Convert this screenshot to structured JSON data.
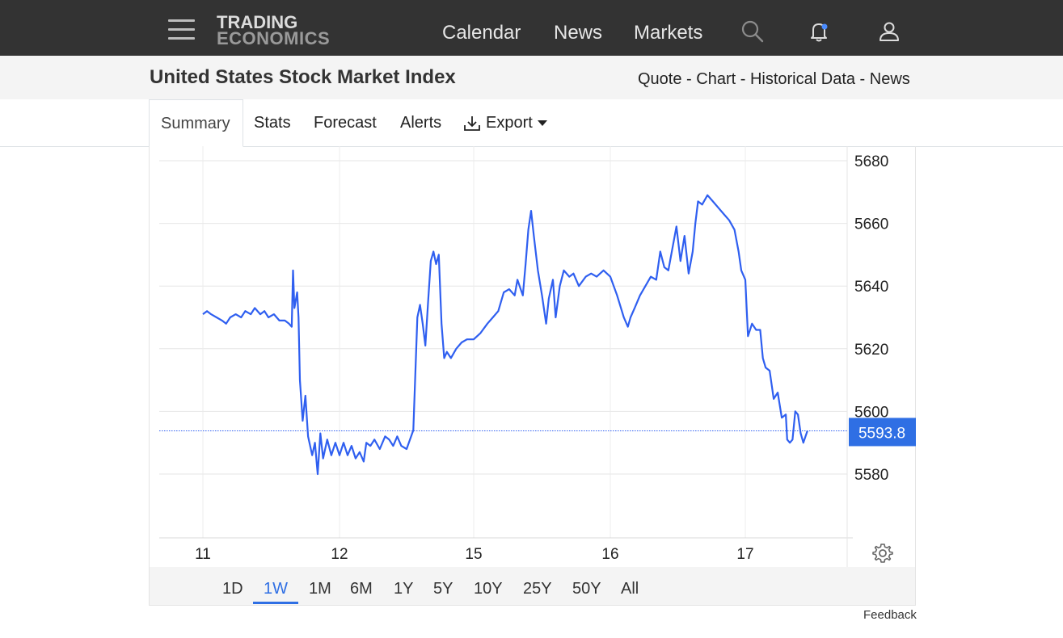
{
  "nav": {
    "logo_top": "TRADING",
    "logo_bottom": "ECONOMICS",
    "links": [
      "Calendar",
      "News",
      "Markets"
    ],
    "icons": [
      "menu-icon",
      "search-icon",
      "bell-icon",
      "user-icon"
    ],
    "notification_dot_color": "#4a8cff"
  },
  "header": {
    "title": "United States Stock Market Index",
    "links": [
      "Quote",
      "Chart",
      "Historical Data",
      "News"
    ],
    "separator": " - "
  },
  "tabs": {
    "items": [
      "Summary",
      "Stats",
      "Forecast",
      "Alerts",
      "Export"
    ],
    "active": "Summary"
  },
  "range": {
    "options": [
      "1D",
      "1W",
      "1M",
      "6M",
      "1Y",
      "5Y",
      "10Y",
      "25Y",
      "50Y",
      "All"
    ],
    "active": "1W"
  },
  "feedback_label": "Feedback",
  "chart_data": {
    "type": "line",
    "color": "#2f5ff0",
    "x_tick_labels": [
      "11",
      "12",
      "15",
      "16",
      "17"
    ],
    "y_ticks": [
      5580,
      5600,
      5620,
      5640,
      5660,
      5680
    ],
    "ylim": [
      5562,
      5684
    ],
    "xlim": [
      0,
      5
    ],
    "last_value": 5593.8,
    "last_value_label": "5593.8",
    "series": [
      {
        "values": [
          [
            0.0,
            5631
          ],
          [
            0.03,
            5632
          ],
          [
            0.06,
            5631
          ],
          [
            0.1,
            5630
          ],
          [
            0.14,
            5629
          ],
          [
            0.17,
            5628
          ],
          [
            0.2,
            5630
          ],
          [
            0.24,
            5631
          ],
          [
            0.28,
            5630
          ],
          [
            0.31,
            5632
          ],
          [
            0.35,
            5631
          ],
          [
            0.38,
            5633
          ],
          [
            0.42,
            5631
          ],
          [
            0.45,
            5632
          ],
          [
            0.48,
            5630
          ],
          [
            0.52,
            5631
          ],
          [
            0.56,
            5629
          ],
          [
            0.6,
            5629
          ],
          [
            0.63,
            5628
          ],
          [
            0.65,
            5627
          ],
          [
            0.66,
            5645
          ],
          [
            0.67,
            5633
          ],
          [
            0.69,
            5638
          ],
          [
            0.7,
            5630
          ],
          [
            0.71,
            5610
          ],
          [
            0.73,
            5597
          ],
          [
            0.75,
            5605
          ],
          [
            0.77,
            5592
          ],
          [
            0.8,
            5586
          ],
          [
            0.82,
            5590
          ],
          [
            0.84,
            5580
          ],
          [
            0.86,
            5593
          ],
          [
            0.88,
            5585
          ],
          [
            0.91,
            5591
          ],
          [
            0.94,
            5586
          ],
          [
            0.97,
            5590
          ],
          [
            1.0,
            5586
          ],
          [
            1.03,
            5590
          ],
          [
            1.06,
            5586
          ],
          [
            1.09,
            5589
          ],
          [
            1.12,
            5585
          ],
          [
            1.15,
            5587
          ],
          [
            1.18,
            5584
          ],
          [
            1.2,
            5590
          ],
          [
            1.23,
            5589
          ],
          [
            1.26,
            5591
          ],
          [
            1.3,
            5588
          ],
          [
            1.34,
            5592
          ],
          [
            1.37,
            5591
          ],
          [
            1.4,
            5589
          ],
          [
            1.43,
            5592
          ],
          [
            1.46,
            5589
          ],
          [
            1.5,
            5588
          ],
          [
            1.55,
            5594
          ],
          [
            1.58,
            5630
          ],
          [
            1.6,
            5634
          ],
          [
            1.62,
            5628
          ],
          [
            1.64,
            5621
          ],
          [
            1.66,
            5635
          ],
          [
            1.68,
            5648
          ],
          [
            1.7,
            5651
          ],
          [
            1.72,
            5647
          ],
          [
            1.74,
            5650
          ],
          [
            1.76,
            5628
          ],
          [
            1.78,
            5617
          ],
          [
            1.8,
            5619
          ],
          [
            1.83,
            5617
          ],
          [
            1.87,
            5620
          ],
          [
            1.91,
            5622
          ],
          [
            1.95,
            5623
          ],
          [
            2.0,
            5623
          ],
          [
            2.05,
            5625
          ],
          [
            2.1,
            5628
          ],
          [
            2.14,
            5630
          ],
          [
            2.18,
            5632
          ],
          [
            2.22,
            5638
          ],
          [
            2.26,
            5639
          ],
          [
            2.3,
            5637
          ],
          [
            2.32,
            5642
          ],
          [
            2.36,
            5637
          ],
          [
            2.38,
            5647
          ],
          [
            2.4,
            5658
          ],
          [
            2.42,
            5664
          ],
          [
            2.44,
            5656
          ],
          [
            2.47,
            5645
          ],
          [
            2.5,
            5637
          ],
          [
            2.53,
            5628
          ],
          [
            2.55,
            5636
          ],
          [
            2.58,
            5642
          ],
          [
            2.6,
            5630
          ],
          [
            2.63,
            5640
          ],
          [
            2.66,
            5645
          ],
          [
            2.7,
            5643
          ],
          [
            2.73,
            5644
          ],
          [
            2.77,
            5640
          ],
          [
            2.82,
            5643
          ],
          [
            2.86,
            5644
          ],
          [
            2.9,
            5643
          ],
          [
            2.95,
            5645
          ],
          [
            3.0,
            5643
          ],
          [
            3.05,
            5637
          ],
          [
            3.1,
            5630
          ],
          [
            3.13,
            5627
          ],
          [
            3.15,
            5630
          ],
          [
            3.18,
            5633
          ],
          [
            3.22,
            5637
          ],
          [
            3.26,
            5640
          ],
          [
            3.3,
            5643
          ],
          [
            3.34,
            5642
          ],
          [
            3.37,
            5651
          ],
          [
            3.4,
            5646
          ],
          [
            3.43,
            5645
          ],
          [
            3.46,
            5652
          ],
          [
            3.49,
            5659
          ],
          [
            3.52,
            5648
          ],
          [
            3.55,
            5656
          ],
          [
            3.58,
            5644
          ],
          [
            3.61,
            5651
          ],
          [
            3.63,
            5660
          ],
          [
            3.65,
            5667
          ],
          [
            3.68,
            5666
          ],
          [
            3.72,
            5669
          ],
          [
            3.76,
            5667
          ],
          [
            3.8,
            5665
          ],
          [
            3.84,
            5663
          ],
          [
            3.88,
            5661
          ],
          [
            3.92,
            5658
          ],
          [
            3.95,
            5651
          ],
          [
            3.97,
            5645
          ],
          [
            4.0,
            5642
          ],
          [
            4.02,
            5624
          ],
          [
            4.05,
            5628
          ],
          [
            4.08,
            5626
          ],
          [
            4.11,
            5626
          ],
          [
            4.13,
            5617
          ],
          [
            4.15,
            5614
          ],
          [
            4.18,
            5613
          ],
          [
            4.21,
            5604
          ],
          [
            4.24,
            5606
          ],
          [
            4.27,
            5598
          ],
          [
            4.3,
            5599
          ],
          [
            4.31,
            5591
          ],
          [
            4.33,
            5590
          ],
          [
            4.35,
            5591
          ],
          [
            4.37,
            5600
          ],
          [
            4.39,
            5599
          ],
          [
            4.41,
            5593
          ],
          [
            4.43,
            5590
          ],
          [
            4.46,
            5593.8
          ]
        ]
      }
    ]
  }
}
